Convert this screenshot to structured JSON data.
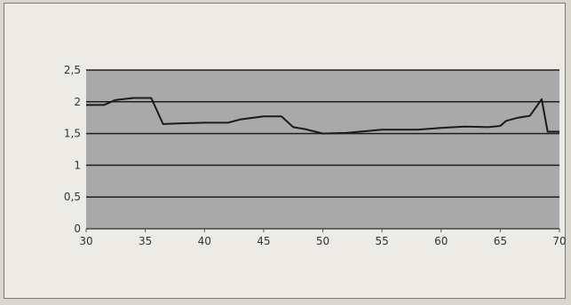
{
  "chart_data": {
    "type": "line",
    "title": "",
    "xlabel": "",
    "ylabel": "",
    "xlim": [
      30,
      70
    ],
    "ylim": [
      0,
      2.5
    ],
    "x_ticks": [
      "30",
      "35",
      "40",
      "45",
      "50",
      "55",
      "60",
      "65",
      "70"
    ],
    "y_ticks": [
      "0",
      "0,5",
      "1",
      "1,5",
      "2",
      "2,5"
    ],
    "grid": true,
    "legend": "none",
    "colors": {
      "plot_bg": "#a9a9a9",
      "line": "#1a1a1a",
      "grid": "#1e1e1e"
    },
    "series": [
      {
        "x": [
          30,
          31.5,
          32.5,
          34,
          35.5,
          36.5,
          38,
          40,
          42,
          43,
          45,
          46.5,
          47.5,
          48.5,
          50,
          52,
          55,
          58,
          60,
          62,
          64,
          65,
          65.5,
          66.5,
          67.5,
          68.5,
          69,
          70
        ],
        "y": [
          1.95,
          1.95,
          2.03,
          2.06,
          2.06,
          1.65,
          1.66,
          1.67,
          1.67,
          1.72,
          1.77,
          1.77,
          1.6,
          1.57,
          1.5,
          1.51,
          1.56,
          1.56,
          1.59,
          1.61,
          1.6,
          1.62,
          1.7,
          1.75,
          1.78,
          2.04,
          1.53,
          1.53
        ]
      }
    ]
  }
}
